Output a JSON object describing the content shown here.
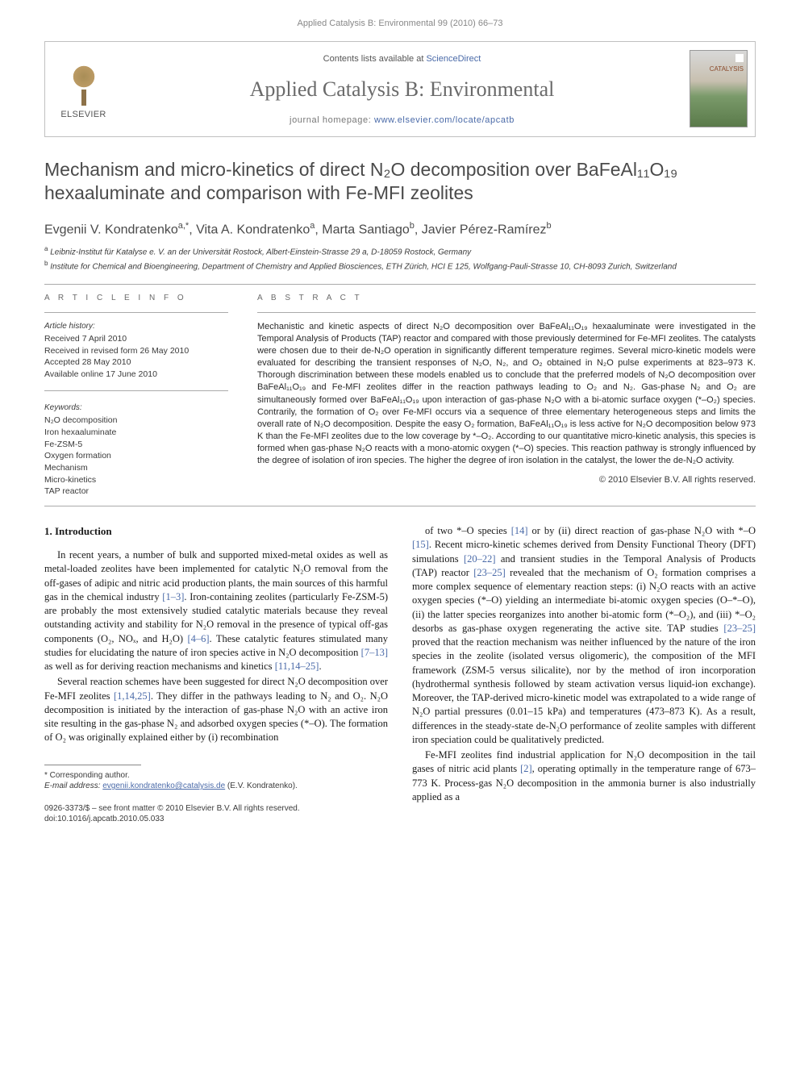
{
  "site_header": "Applied Catalysis B: Environmental 99 (2010) 66–73",
  "masthead": {
    "contents_prefix": "Contents lists available at ",
    "contents_link": "ScienceDirect",
    "journal_name": "Applied Catalysis B: Environmental",
    "homepage_prefix": "journal homepage: ",
    "homepage_url": "www.elsevier.com/locate/apcatb",
    "publisher": "ELSEVIER",
    "cover_label": "CATALYSIS"
  },
  "title": "Mechanism and micro-kinetics of direct N₂O decomposition over BaFeAl₁₁O₁₉ hexaaluminate and comparison with Fe-MFI zeolites",
  "authors_html": "Evgenii V. Kondratenko<sup>a,*</sup>, Vita A. Kondratenko<sup>a</sup>, Marta Santiago<sup>b</sup>, Javier Pérez-Ramírez<sup>b</sup>",
  "affiliations": [
    {
      "sup": "a",
      "text": "Leibniz-Institut für Katalyse e. V. an der Universität Rostock, Albert-Einstein-Strasse 29 a, D-18059 Rostock, Germany"
    },
    {
      "sup": "b",
      "text": "Institute for Chemical and Bioengineering, Department of Chemistry and Applied Biosciences, ETH Zürich, HCI E 125, Wolfgang-Pauli-Strasse 10, CH-8093 Zurich, Switzerland"
    }
  ],
  "article_info": {
    "label": "A R T I C L E    I N F O",
    "history_label": "Article history:",
    "history": [
      "Received 7 April 2010",
      "Received in revised form 26 May 2010",
      "Accepted 28 May 2010",
      "Available online 17 June 2010"
    ],
    "keywords_label": "Keywords:",
    "keywords": [
      "N₂O decomposition",
      "Iron hexaaluminate",
      "Fe-ZSM-5",
      "Oxygen formation",
      "Mechanism",
      "Micro-kinetics",
      "TAP reactor"
    ]
  },
  "abstract": {
    "label": "A B S T R A C T",
    "text": "Mechanistic and kinetic aspects of direct N₂O decomposition over BaFeAl₁₁O₁₉ hexaaluminate were investigated in the Temporal Analysis of Products (TAP) reactor and compared with those previously determined for Fe-MFI zeolites. The catalysts were chosen due to their de-N₂O operation in significantly different temperature regimes. Several micro-kinetic models were evaluated for describing the transient responses of N₂O, N₂, and O₂ obtained in N₂O pulse experiments at 823–973 K. Thorough discrimination between these models enabled us to conclude that the preferred models of N₂O decomposition over BaFeAl₁₁O₁₉ and Fe-MFI zeolites differ in the reaction pathways leading to O₂ and N₂. Gas-phase N₂ and O₂ are simultaneously formed over BaFeAl₁₁O₁₉ upon interaction of gas-phase N₂O with a bi-atomic surface oxygen (*–O₂) species. Contrarily, the formation of O₂ over Fe-MFI occurs via a sequence of three elementary heterogeneous steps and limits the overall rate of N₂O decomposition. Despite the easy O₂ formation, BaFeAl₁₁O₁₉ is less active for N₂O decomposition below 973 K than the Fe-MFI zeolites due to the low coverage by *–O₂. According to our quantitative micro-kinetic analysis, this species is formed when gas-phase N₂O reacts with a mono-atomic oxygen (*–O) species. This reaction pathway is strongly influenced by the degree of isolation of iron species. The higher the degree of iron isolation in the catalyst, the lower the de-N₂O activity.",
    "copyright": "© 2010 Elsevier B.V. All rights reserved."
  },
  "body": {
    "heading": "1. Introduction",
    "col1": [
      "In recent years, a number of bulk and supported mixed-metal oxides as well as metal-loaded zeolites have been implemented for catalytic N₂O removal from the off-gases of adipic and nitric acid production plants, the main sources of this harmful gas in the chemical industry [1–3]. Iron-containing zeolites (particularly Fe-ZSM-5) are probably the most extensively studied catalytic materials because they reveal outstanding activity and stability for N₂O removal in the presence of typical off-gas components (O₂, NOₓ, and H₂O) [4–6]. These catalytic features stimulated many studies for elucidating the nature of iron species active in N₂O decomposition [7–13] as well as for deriving reaction mechanisms and kinetics [11,14–25].",
      "Several reaction schemes have been suggested for direct N₂O decomposition over Fe-MFI zeolites [1,14,25]. They differ in the pathways leading to N₂ and O₂. N₂O decomposition is initiated by the interaction of gas-phase N₂O with an active iron site resulting in the gas-phase N₂ and adsorbed oxygen species (*–O). The formation of O₂ was originally explained either by (i) recombination"
    ],
    "col2": [
      "of two *–O species [14] or by (ii) direct reaction of gas-phase N₂O with *–O [15]. Recent micro-kinetic schemes derived from Density Functional Theory (DFT) simulations [20–22] and transient studies in the Temporal Analysis of Products (TAP) reactor [23–25] revealed that the mechanism of O₂ formation comprises a more complex sequence of elementary reaction steps: (i) N₂O reacts with an active oxygen species (*–O) yielding an intermediate bi-atomic oxygen species (O–*–O), (ii) the latter species reorganizes into another bi-atomic form (*–O₂), and (iii) *–O₂ desorbs as gas-phase oxygen regenerating the active site. TAP studies [23–25] proved that the reaction mechanism was neither influenced by the nature of the iron species in the zeolite (isolated versus oligomeric), the composition of the MFI framework (ZSM-5 versus silicalite), nor by the method of iron incorporation (hydrothermal synthesis followed by steam activation versus liquid-ion exchange). Moreover, the TAP-derived micro-kinetic model was extrapolated to a wide range of N₂O partial pressures (0.01–15 kPa) and temperatures (473–873 K). As a result, differences in the steady-state de-N₂O performance of zeolite samples with different iron speciation could be qualitatively predicted.",
      "Fe-MFI zeolites find industrial application for N₂O decomposition in the tail gases of nitric acid plants [2], operating optimally in the temperature range of 673–773 K. Process-gas N₂O decomposition in the ammonia burner is also industrially applied as a"
    ]
  },
  "footnote": {
    "corr": "* Corresponding author.",
    "email_label": "E-mail address: ",
    "email": "evgenii.kondratenko@catalysis.de",
    "email_who": " (E.V. Kondratenko)."
  },
  "footer": {
    "line1": "0926-3373/$ – see front matter © 2010 Elsevier B.V. All rights reserved.",
    "line2": "doi:10.1016/j.apcatb.2010.05.033"
  },
  "colors": {
    "link": "#4a6aa8",
    "heading_gray": "#4a4a4a",
    "text": "#1a1a1a",
    "meta_gray": "#888888"
  }
}
